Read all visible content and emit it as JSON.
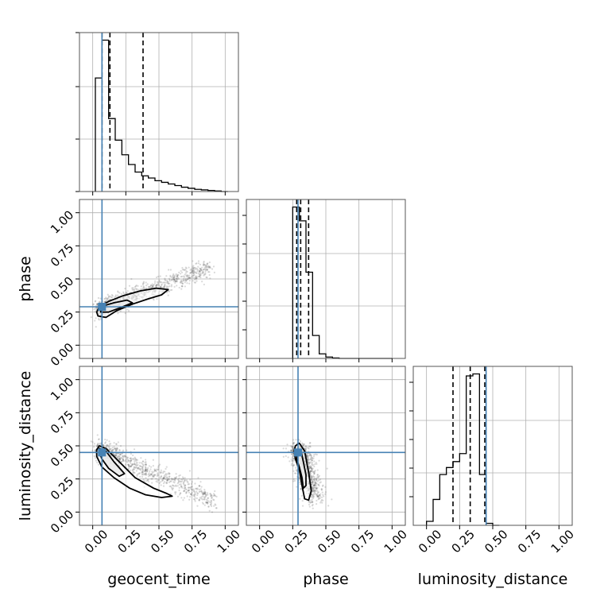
{
  "chart_data": {
    "type": "corner",
    "parameters": [
      "geocent_time",
      "phase",
      "luminosity_distance"
    ],
    "truths": {
      "geocent_time": 0.07,
      "phase": 0.29,
      "luminosity_distance": 0.45
    },
    "range": [
      -0.1,
      1.1
    ],
    "tick_labels": [
      "0.00",
      "0.25",
      "0.50",
      "0.75",
      "1.00"
    ],
    "grid": true,
    "colors": {
      "truth": "#4682b4",
      "hist": "#000000",
      "quantile": "#000000",
      "samples": "#555555"
    },
    "marginals": {
      "geocent_time": {
        "bin_edges": [
          0.02,
          0.07,
          0.12,
          0.17,
          0.22,
          0.27,
          0.32,
          0.37,
          0.42,
          0.47,
          0.52,
          0.57,
          0.62,
          0.67,
          0.72,
          0.77,
          0.82,
          0.87,
          0.92,
          0.97,
          1.02
        ],
        "counts": [
          210,
          280,
          135,
          95,
          68,
          50,
          36,
          29,
          25,
          20,
          17,
          14,
          11,
          8,
          6,
          4,
          3,
          2,
          1,
          0
        ],
        "quantiles": [
          0.07,
          0.13,
          0.38
        ]
      },
      "phase": {
        "bin_edges": [
          0.25,
          0.3,
          0.35,
          0.4,
          0.45,
          0.5,
          0.55,
          0.6,
          0.65,
          0.7,
          0.75,
          0.8,
          0.85,
          0.9,
          0.95,
          1.0
        ],
        "counts": [
          330,
          300,
          188,
          50,
          10,
          3,
          1,
          0,
          0,
          0,
          0,
          0,
          0,
          0,
          0
        ],
        "quantiles": [
          0.28,
          0.31,
          0.37
        ]
      },
      "luminosity_distance": {
        "bin_edges": [
          0.0,
          0.05,
          0.1,
          0.15,
          0.2,
          0.25,
          0.3,
          0.35,
          0.4,
          0.45,
          0.5,
          0.55
        ],
        "counts": [
          4,
          26,
          51,
          58,
          64,
          72,
          150,
          152,
          51,
          2,
          0
        ],
        "quantiles": [
          0.2,
          0.33,
          0.44
        ]
      }
    },
    "contours": {
      "phase_vs_geocent_time": {
        "outer": [
          [
            0.04,
            0.22
          ],
          [
            0.1,
            0.21
          ],
          [
            0.18,
            0.26
          ],
          [
            0.3,
            0.31
          ],
          [
            0.42,
            0.35
          ],
          [
            0.52,
            0.38
          ],
          [
            0.57,
            0.42
          ],
          [
            0.48,
            0.43
          ],
          [
            0.36,
            0.41
          ],
          [
            0.22,
            0.37
          ],
          [
            0.12,
            0.33
          ],
          [
            0.05,
            0.29
          ],
          [
            0.03,
            0.25
          ]
        ],
        "inner": [
          [
            0.06,
            0.25
          ],
          [
            0.12,
            0.25
          ],
          [
            0.2,
            0.28
          ],
          [
            0.3,
            0.32
          ],
          [
            0.26,
            0.34
          ],
          [
            0.16,
            0.32
          ],
          [
            0.09,
            0.3
          ],
          [
            0.06,
            0.27
          ]
        ]
      },
      "luminosity_distance_vs_geocent_time": {
        "outer": [
          [
            0.05,
            0.5
          ],
          [
            0.1,
            0.48
          ],
          [
            0.2,
            0.38
          ],
          [
            0.32,
            0.26
          ],
          [
            0.46,
            0.18
          ],
          [
            0.56,
            0.14
          ],
          [
            0.6,
            0.12
          ],
          [
            0.52,
            0.11
          ],
          [
            0.4,
            0.13
          ],
          [
            0.28,
            0.18
          ],
          [
            0.16,
            0.26
          ],
          [
            0.07,
            0.34
          ],
          [
            0.03,
            0.42
          ],
          [
            0.03,
            0.47
          ]
        ],
        "inner": [
          [
            0.05,
            0.48
          ],
          [
            0.1,
            0.46
          ],
          [
            0.16,
            0.38
          ],
          [
            0.24,
            0.29
          ],
          [
            0.2,
            0.27
          ],
          [
            0.12,
            0.33
          ],
          [
            0.07,
            0.4
          ],
          [
            0.05,
            0.45
          ]
        ]
      },
      "luminosity_distance_vs_phase": {
        "outer": [
          [
            0.27,
            0.5
          ],
          [
            0.3,
            0.52
          ],
          [
            0.34,
            0.46
          ],
          [
            0.37,
            0.3
          ],
          [
            0.39,
            0.16
          ],
          [
            0.37,
            0.09
          ],
          [
            0.34,
            0.1
          ],
          [
            0.32,
            0.2
          ],
          [
            0.3,
            0.32
          ],
          [
            0.27,
            0.4
          ],
          [
            0.26,
            0.46
          ]
        ],
        "inner": [
          [
            0.28,
            0.47
          ],
          [
            0.31,
            0.47
          ],
          [
            0.33,
            0.38
          ],
          [
            0.35,
            0.28
          ],
          [
            0.35,
            0.2
          ],
          [
            0.33,
            0.18
          ],
          [
            0.32,
            0.26
          ],
          [
            0.3,
            0.34
          ],
          [
            0.28,
            0.4
          ]
        ]
      }
    }
  }
}
